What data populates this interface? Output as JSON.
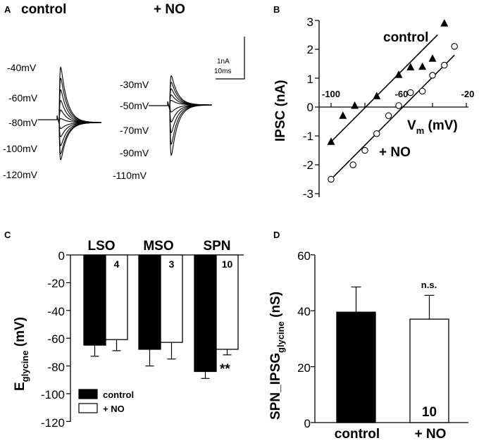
{
  "panel_labels": {
    "a": "A",
    "b": "B",
    "c": "C",
    "d": "D"
  },
  "panel_a": {
    "control_title": "control",
    "no_title": "+ NO",
    "control_voltages": [
      "-40mV",
      "-60mV",
      "-80mV",
      "-100mV",
      "-120mV"
    ],
    "no_voltages": [
      "-30mV",
      "-50mV",
      "-70mV",
      "-90mV",
      "-110mV"
    ],
    "scale_current": "1nA",
    "scale_time": "10ms"
  },
  "chart_data": [
    {
      "type": "scatter",
      "panel": "B",
      "xlabel": "V",
      "xlabel_sub": "m",
      "xlabel_unit": " (mV)",
      "ylabel": "IPSC (nA)",
      "xlim": [
        -110,
        -15
      ],
      "ylim": [
        -3,
        3
      ],
      "x_ticks": [
        "-100",
        "-60",
        "-20"
      ],
      "y_ticks": [
        "3",
        "2",
        "1",
        "0",
        "-1",
        "-2",
        "-3"
      ],
      "series": [
        {
          "name": "control",
          "marker": "filled-triangle",
          "x": [
            -100,
            -93,
            -86,
            -73,
            -60,
            -53,
            -46,
            -40,
            -33
          ],
          "y": [
            -1.2,
            -0.3,
            0.05,
            0.38,
            1.12,
            1.38,
            1.4,
            1.68,
            2.9
          ],
          "fit": [
            [
              -100,
              -1.2
            ],
            [
              -37,
              2.5
            ]
          ]
        },
        {
          "name": "+ NO",
          "marker": "open-circle",
          "x": [
            -100,
            -87,
            -80,
            -73,
            -66,
            -60,
            -53,
            -46,
            -40,
            -33,
            -27
          ],
          "y": [
            -2.5,
            -2.0,
            -1.5,
            -0.92,
            -0.3,
            0.05,
            0.5,
            0.55,
            1.1,
            1.45,
            2.1
          ],
          "fit": [
            [
              -100,
              -2.5
            ],
            [
              -27,
              1.8
            ]
          ]
        }
      ]
    },
    {
      "type": "bar",
      "panel": "C",
      "ylabel": "E",
      "ylabel_sub": "glycine",
      "ylabel_unit": " (mV)",
      "ylim": [
        -120,
        0
      ],
      "y_ticks": [
        "0",
        "-20",
        "-40",
        "-60",
        "-80",
        "-100",
        "-120"
      ],
      "categories": [
        "LSO",
        "MSO",
        "SPN"
      ],
      "legend": [
        "control",
        "+ NO"
      ],
      "series": [
        {
          "name": "control",
          "values": [
            -65,
            -68,
            -84
          ],
          "errors": [
            8,
            12,
            5
          ],
          "n": [
            "4",
            "3",
            "10"
          ]
        },
        {
          "name": "+ NO",
          "values": [
            -61,
            -63,
            -68
          ],
          "errors": [
            8,
            12,
            4
          ],
          "n": [
            "4",
            "3",
            "10"
          ]
        }
      ],
      "annotation": "**"
    },
    {
      "type": "bar",
      "panel": "D",
      "ylabel": "SPN_IPSG",
      "ylabel_sub": "glycine",
      "ylabel_unit": " (nS)",
      "ylim": [
        0,
        60
      ],
      "y_ticks": [
        "60",
        "40",
        "20",
        "0"
      ],
      "categories": [
        "control",
        "+ NO"
      ],
      "values": [
        39.5,
        37
      ],
      "errors": [
        9,
        8.5
      ],
      "n": [
        "10",
        "10"
      ],
      "annotation": "n.s."
    }
  ]
}
